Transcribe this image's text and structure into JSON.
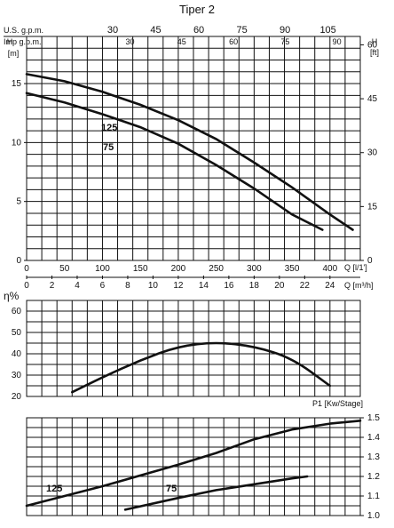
{
  "chart_data": [
    {
      "type": "line",
      "title": "Tiper 2",
      "usgpm": {
        "label": "U.S. g.p.m.",
        "ticks": [
          "30",
          "45",
          "60",
          "75",
          "90",
          "105"
        ],
        "values": [
          30,
          45,
          60,
          75,
          90,
          105
        ]
      },
      "impgpm": {
        "label": "Imp g.p.m.",
        "ticks": [
          "30",
          "45",
          "60",
          "75",
          "90"
        ],
        "values": [
          30,
          45,
          60,
          75,
          90
        ]
      },
      "ylabel_left": "H",
      "ylabel_left_unit": "[m]",
      "ylabel_right": "H",
      "ylabel_right_unit": "[ft]",
      "xlabel_lmin": "Q [l/1']",
      "xlabel_m3h": "Q [m³/h]",
      "ylim": [
        0,
        19
      ],
      "xlim": [
        0,
        440
      ],
      "yticks_left": [
        "0",
        "5",
        "10",
        "15"
      ],
      "yticks_right": [
        "0",
        "15",
        "30",
        "45",
        "60"
      ],
      "xticks_lmin": [
        "0",
        "50",
        "100",
        "150",
        "200",
        "250",
        "300",
        "350",
        "400"
      ],
      "xticks_m3h": [
        "0",
        "2",
        "4",
        "6",
        "8",
        "10",
        "12",
        "14",
        "16",
        "18",
        "20",
        "22",
        "24"
      ],
      "series": [
        {
          "name": "125",
          "x": [
            0,
            50,
            100,
            150,
            200,
            250,
            300,
            350,
            400,
            430
          ],
          "y": [
            15.8,
            15.2,
            14.3,
            13.2,
            11.9,
            10.3,
            8.3,
            6.2,
            3.9,
            2.6
          ]
        },
        {
          "name": "75",
          "x": [
            0,
            50,
            100,
            150,
            200,
            250,
            300,
            350,
            390
          ],
          "y": [
            14.2,
            13.4,
            12.4,
            11.3,
            9.9,
            8.1,
            6.1,
            3.9,
            2.6
          ]
        }
      ]
    },
    {
      "type": "line",
      "ylabel": "η%",
      "ylim": [
        20,
        65
      ],
      "yticks": [
        "20",
        "30",
        "40",
        "50",
        "60"
      ],
      "series": [
        {
          "name": "",
          "x": [
            60,
            100,
            150,
            200,
            250,
            300,
            350,
            400
          ],
          "y": [
            22,
            29,
            37,
            43.5,
            45.5,
            43.5,
            38,
            25
          ]
        }
      ]
    },
    {
      "type": "line",
      "ylabel": "P1 [Kw/Stage]",
      "ylim": [
        1.0,
        1.5
      ],
      "yticks": [
        "1.0",
        "1.1",
        "1.2",
        "1.3",
        "1.4",
        "1.5"
      ],
      "series": [
        {
          "name": "125",
          "x": [
            0,
            100,
            200,
            250,
            300,
            350,
            400,
            440
          ],
          "y": [
            1.05,
            1.15,
            1.26,
            1.32,
            1.39,
            1.44,
            1.47,
            1.485
          ]
        },
        {
          "name": "75",
          "x": [
            130,
            200,
            250,
            300,
            350,
            370
          ],
          "y": [
            1.03,
            1.09,
            1.13,
            1.16,
            1.19,
            1.2
          ]
        }
      ]
    }
  ]
}
